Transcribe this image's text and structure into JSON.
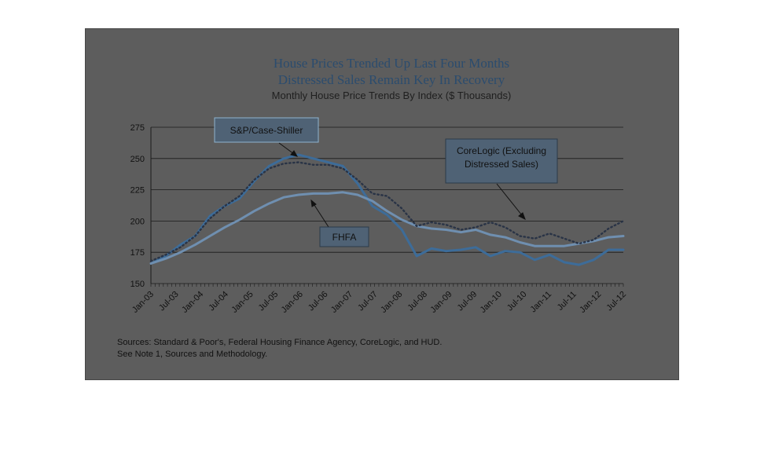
{
  "chart_data": {
    "type": "line",
    "title": "House Prices Trended Up Last Four Months",
    "subtitle": "Distressed Sales Remain Key In Recovery",
    "subtitle2": "Monthly House Price Trends By Index ($ Thousands)",
    "xlabel": "",
    "ylabel": "",
    "ylim": [
      150,
      275
    ],
    "yticks": [
      150,
      175,
      200,
      225,
      250,
      275
    ],
    "x_tick_labels": [
      "Jan-03",
      "Jul-03",
      "Jan-04",
      "Jul-04",
      "Jan-05",
      "Jul-05",
      "Jan-06",
      "Jul-06",
      "Jan-07",
      "Jul-07",
      "Jan-08",
      "Jul-08",
      "Jan-09",
      "Jul-09",
      "Jan-10",
      "Jul-10",
      "Jan-11",
      "Jul-11",
      "Jan-12",
      "Jul-12"
    ],
    "grid": "horizontal",
    "legend": "callouts",
    "series": [
      {
        "name": "S&P/Case-Shiller",
        "color": "#3d6c99",
        "style": "solid",
        "points": [
          [
            0,
            166
          ],
          [
            1,
            172
          ],
          [
            2,
            181
          ],
          [
            3,
            188
          ],
          [
            4,
            204
          ],
          [
            5,
            212
          ],
          [
            6,
            218
          ],
          [
            7,
            232
          ],
          [
            8,
            244
          ],
          [
            9,
            250
          ],
          [
            10,
            253
          ],
          [
            11,
            250
          ],
          [
            12,
            247
          ],
          [
            13,
            244
          ],
          [
            14,
            230
          ],
          [
            15,
            212
          ],
          [
            16,
            205
          ],
          [
            17,
            193
          ],
          [
            18,
            172
          ],
          [
            19,
            178
          ],
          [
            20,
            176
          ],
          [
            21,
            177
          ],
          [
            22,
            179
          ],
          [
            23,
            172
          ],
          [
            24,
            176
          ],
          [
            25,
            175
          ],
          [
            26,
            169
          ],
          [
            27,
            173
          ],
          [
            28,
            167
          ],
          [
            29,
            165
          ],
          [
            30,
            169
          ],
          [
            31,
            177
          ],
          [
            32,
            177
          ]
        ]
      },
      {
        "name": "FHFA",
        "color": "#6f8fb0",
        "style": "solid",
        "points": [
          [
            0,
            166
          ],
          [
            1,
            170
          ],
          [
            2,
            175
          ],
          [
            3,
            181
          ],
          [
            4,
            188
          ],
          [
            5,
            195
          ],
          [
            6,
            201
          ],
          [
            7,
            208
          ],
          [
            8,
            214
          ],
          [
            9,
            219
          ],
          [
            10,
            221
          ],
          [
            11,
            222
          ],
          [
            12,
            222
          ],
          [
            13,
            223
          ],
          [
            14,
            221
          ],
          [
            15,
            216
          ],
          [
            16,
            208
          ],
          [
            17,
            201
          ],
          [
            18,
            196
          ],
          [
            19,
            194
          ],
          [
            20,
            193
          ],
          [
            21,
            191
          ],
          [
            22,
            193
          ],
          [
            23,
            189
          ],
          [
            24,
            187
          ],
          [
            25,
            183
          ],
          [
            26,
            180
          ],
          [
            27,
            180
          ],
          [
            28,
            180
          ],
          [
            29,
            182
          ],
          [
            30,
            184
          ],
          [
            31,
            187
          ],
          [
            32,
            188
          ]
        ]
      },
      {
        "name": "CoreLogic (Excluding Distressed Sales)",
        "color": "#2a3446",
        "style": "dotted",
        "points": [
          [
            0,
            168
          ],
          [
            1,
            173
          ],
          [
            2,
            179
          ],
          [
            3,
            188
          ],
          [
            4,
            202
          ],
          [
            5,
            212
          ],
          [
            6,
            220
          ],
          [
            7,
            233
          ],
          [
            8,
            242
          ],
          [
            9,
            246
          ],
          [
            10,
            247
          ],
          [
            11,
            245
          ],
          [
            12,
            245
          ],
          [
            13,
            242
          ],
          [
            14,
            233
          ],
          [
            15,
            222
          ],
          [
            16,
            220
          ],
          [
            17,
            210
          ],
          [
            18,
            196
          ],
          [
            19,
            199
          ],
          [
            20,
            197
          ],
          [
            21,
            193
          ],
          [
            22,
            195
          ],
          [
            23,
            199
          ],
          [
            24,
            195
          ],
          [
            25,
            188
          ],
          [
            26,
            186
          ],
          [
            27,
            190
          ],
          [
            28,
            186
          ],
          [
            29,
            182
          ],
          [
            30,
            185
          ],
          [
            31,
            194
          ],
          [
            32,
            200
          ]
        ]
      }
    ],
    "callouts": [
      {
        "label": "S&P/Case-Shiller"
      },
      {
        "label_line1": "CoreLogic (Excluding",
        "label_line2": "Distressed Sales)"
      },
      {
        "label": "FHFA"
      }
    ]
  },
  "sources": {
    "line1": "Sources:  Standard & Poor's, Federal Housing Finance Agency, CoreLogic, and HUD.",
    "line2": "See Note 1, Sources and Methodology."
  }
}
